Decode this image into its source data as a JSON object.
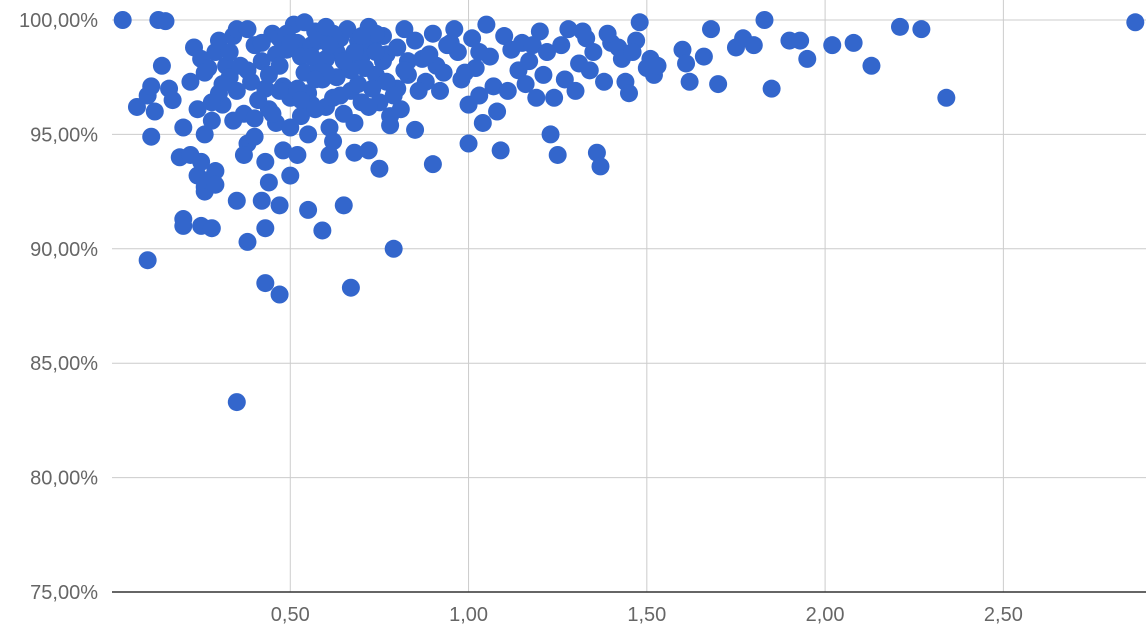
{
  "colors": {
    "point": "#3366cc",
    "grid": "#cccccc",
    "baseline": "#333333",
    "tick_text": "#666666"
  },
  "chart_data": {
    "type": "scatter",
    "title": "",
    "xlabel": "",
    "ylabel": "",
    "xlim": [
      0,
      2.9
    ],
    "ylim": [
      75,
      100
    ],
    "x_ticks": [
      {
        "value": 0.5,
        "label": "0,50"
      },
      {
        "value": 1.0,
        "label": "1,00"
      },
      {
        "value": 1.5,
        "label": "1,50"
      },
      {
        "value": 2.0,
        "label": "2,00"
      },
      {
        "value": 2.5,
        "label": "2,50"
      }
    ],
    "y_ticks": [
      {
        "value": 75,
        "label": "75,00%"
      },
      {
        "value": 80,
        "label": "80,00%"
      },
      {
        "value": 85,
        "label": "85,00%"
      },
      {
        "value": 90,
        "label": "90,00%"
      },
      {
        "value": 95,
        "label": "95,00%"
      },
      {
        "value": 100,
        "label": "100,00%"
      }
    ],
    "grid": true,
    "legend": "none",
    "points": [
      [
        0.03,
        100.0
      ],
      [
        0.13,
        100.0
      ],
      [
        0.15,
        99.95
      ],
      [
        0.07,
        96.2
      ],
      [
        0.1,
        96.7
      ],
      [
        0.11,
        97.1
      ],
      [
        0.12,
        96.0
      ],
      [
        0.14,
        98.0
      ],
      [
        0.16,
        97.0
      ],
      [
        0.17,
        96.5
      ],
      [
        0.11,
        94.9
      ],
      [
        0.1,
        89.5
      ],
      [
        0.19,
        94.0
      ],
      [
        0.2,
        95.3
      ],
      [
        0.2,
        91.3
      ],
      [
        0.2,
        91.0
      ],
      [
        0.22,
        94.1
      ],
      [
        0.24,
        93.2
      ],
      [
        0.25,
        93.8
      ],
      [
        0.26,
        92.7
      ],
      [
        0.26,
        92.5
      ],
      [
        0.27,
        93.0
      ],
      [
        0.29,
        93.4
      ],
      [
        0.29,
        92.8
      ],
      [
        0.25,
        91.0
      ],
      [
        0.28,
        90.9
      ],
      [
        0.26,
        95.0
      ],
      [
        0.28,
        95.6
      ],
      [
        0.22,
        97.3
      ],
      [
        0.23,
        98.8
      ],
      [
        0.25,
        98.3
      ],
      [
        0.27,
        97.9
      ],
      [
        0.29,
        98.6
      ],
      [
        0.3,
        99.1
      ],
      [
        0.32,
        98.0
      ],
      [
        0.34,
        99.3
      ],
      [
        0.35,
        99.6
      ],
      [
        0.33,
        97.5
      ],
      [
        0.31,
        96.3
      ],
      [
        0.35,
        96.9
      ],
      [
        0.37,
        95.9
      ],
      [
        0.38,
        97.8
      ],
      [
        0.4,
        98.9
      ],
      [
        0.42,
        98.2
      ],
      [
        0.43,
        97.0
      ],
      [
        0.44,
        96.1
      ],
      [
        0.46,
        95.5
      ],
      [
        0.48,
        94.3
      ],
      [
        0.38,
        94.6
      ],
      [
        0.4,
        94.9
      ],
      [
        0.43,
        93.8
      ],
      [
        0.44,
        92.9
      ],
      [
        0.42,
        92.1
      ],
      [
        0.35,
        92.1
      ],
      [
        0.43,
        90.9
      ],
      [
        0.38,
        90.3
      ],
      [
        0.47,
        91.9
      ],
      [
        0.5,
        93.2
      ],
      [
        0.52,
        94.1
      ],
      [
        0.5,
        95.3
      ],
      [
        0.45,
        99.4
      ],
      [
        0.47,
        99.2
      ],
      [
        0.49,
        98.7
      ],
      [
        0.51,
        99.8
      ],
      [
        0.52,
        99.0
      ],
      [
        0.53,
        98.4
      ],
      [
        0.54,
        97.7
      ],
      [
        0.55,
        96.8
      ],
      [
        0.56,
        98.9
      ],
      [
        0.57,
        99.5
      ],
      [
        0.58,
        98.1
      ],
      [
        0.59,
        97.4
      ],
      [
        0.6,
        96.2
      ],
      [
        0.61,
        95.3
      ],
      [
        0.62,
        94.7
      ],
      [
        0.63,
        98.6
      ],
      [
        0.64,
        99.2
      ],
      [
        0.66,
        98.0
      ],
      [
        0.67,
        96.9
      ],
      [
        0.68,
        95.5
      ],
      [
        0.69,
        97.2
      ],
      [
        0.7,
        98.4
      ],
      [
        0.71,
        99.0
      ],
      [
        0.72,
        99.7
      ],
      [
        0.73,
        98.8
      ],
      [
        0.74,
        97.6
      ],
      [
        0.75,
        96.4
      ],
      [
        0.76,
        99.3
      ],
      [
        0.77,
        98.5
      ],
      [
        0.78,
        95.8
      ],
      [
        0.8,
        97.0
      ],
      [
        0.81,
        96.1
      ],
      [
        0.82,
        99.6
      ],
      [
        0.83,
        98.2
      ],
      [
        0.55,
        95.0
      ],
      [
        0.58,
        97.9
      ],
      [
        0.6,
        98.3
      ],
      [
        0.62,
        96.6
      ],
      [
        0.65,
        95.9
      ],
      [
        0.68,
        94.2
      ],
      [
        0.72,
        94.3
      ],
      [
        0.75,
        93.5
      ],
      [
        0.78,
        95.4
      ],
      [
        0.55,
        91.7
      ],
      [
        0.59,
        90.8
      ],
      [
        0.65,
        91.9
      ],
      [
        0.61,
        94.1
      ],
      [
        0.67,
        88.3
      ],
      [
        0.47,
        88.0
      ],
      [
        0.43,
        88.5
      ],
      [
        0.79,
        90.0
      ],
      [
        0.35,
        83.3
      ],
      [
        0.85,
        99.1
      ],
      [
        0.87,
        98.3
      ],
      [
        0.88,
        97.3
      ],
      [
        0.9,
        99.4
      ],
      [
        0.91,
        98.0
      ],
      [
        0.92,
        96.9
      ],
      [
        0.93,
        97.7
      ],
      [
        0.95,
        99.0
      ],
      [
        0.97,
        98.6
      ],
      [
        0.98,
        97.4
      ],
      [
        1.0,
        96.3
      ],
      [
        1.01,
        99.2
      ],
      [
        1.02,
        97.9
      ],
      [
        1.03,
        96.7
      ],
      [
        1.04,
        95.5
      ],
      [
        1.05,
        99.8
      ],
      [
        1.06,
        98.4
      ],
      [
        1.07,
        97.1
      ],
      [
        1.08,
        96.0
      ],
      [
        1.09,
        94.3
      ],
      [
        1.0,
        94.6
      ],
      [
        0.9,
        93.7
      ],
      [
        0.85,
        95.2
      ],
      [
        1.1,
        99.3
      ],
      [
        1.12,
        98.7
      ],
      [
        1.14,
        97.8
      ],
      [
        1.15,
        99.0
      ],
      [
        1.17,
        98.2
      ],
      [
        1.19,
        96.6
      ],
      [
        1.2,
        99.5
      ],
      [
        1.21,
        97.6
      ],
      [
        1.23,
        95.0
      ],
      [
        1.24,
        96.6
      ],
      [
        1.25,
        94.1
      ],
      [
        1.26,
        98.9
      ],
      [
        1.28,
        99.6
      ],
      [
        1.3,
        96.9
      ],
      [
        1.31,
        98.1
      ],
      [
        1.33,
        99.2
      ],
      [
        1.35,
        98.6
      ],
      [
        1.36,
        94.2
      ],
      [
        1.37,
        93.6
      ],
      [
        1.38,
        97.3
      ],
      [
        1.4,
        99.0
      ],
      [
        1.42,
        98.8
      ],
      [
        1.44,
        97.3
      ],
      [
        1.45,
        96.8
      ],
      [
        1.47,
        99.1
      ],
      [
        1.48,
        99.9
      ],
      [
        1.5,
        97.9
      ],
      [
        1.51,
        98.3
      ],
      [
        1.52,
        97.6
      ],
      [
        1.53,
        98.0
      ],
      [
        1.6,
        98.7
      ],
      [
        1.62,
        97.3
      ],
      [
        1.61,
        98.1
      ],
      [
        1.66,
        98.4
      ],
      [
        1.68,
        99.6
      ],
      [
        1.7,
        97.2
      ],
      [
        1.75,
        98.8
      ],
      [
        1.77,
        99.2
      ],
      [
        1.8,
        98.9
      ],
      [
        1.83,
        100.0
      ],
      [
        1.85,
        97.0
      ],
      [
        1.9,
        99.1
      ],
      [
        1.93,
        99.1
      ],
      [
        1.95,
        98.3
      ],
      [
        2.02,
        98.9
      ],
      [
        2.08,
        99.0
      ],
      [
        2.13,
        98.0
      ],
      [
        2.21,
        99.7
      ],
      [
        2.27,
        99.6
      ],
      [
        2.34,
        96.6
      ],
      [
        2.87,
        99.9
      ],
      [
        0.3,
        96.8
      ],
      [
        0.33,
        98.6
      ],
      [
        0.36,
        98.0
      ],
      [
        0.39,
        97.3
      ],
      [
        0.41,
        96.5
      ],
      [
        0.44,
        97.6
      ],
      [
        0.46,
        98.5
      ],
      [
        0.48,
        97.1
      ],
      [
        0.5,
        96.6
      ],
      [
        0.53,
        95.8
      ],
      [
        0.56,
        96.3
      ],
      [
        0.58,
        99.1
      ],
      [
        0.63,
        97.5
      ],
      [
        0.66,
        99.6
      ],
      [
        0.69,
        99.1
      ],
      [
        0.71,
        97.9
      ],
      [
        0.74,
        99.4
      ],
      [
        0.77,
        97.3
      ],
      [
        0.8,
        98.8
      ],
      [
        0.83,
        97.6
      ],
      [
        0.86,
        96.9
      ],
      [
        0.89,
        98.5
      ],
      [
        0.94,
        98.9
      ],
      [
        0.96,
        99.6
      ],
      [
        0.99,
        97.7
      ],
      [
        1.03,
        98.6
      ],
      [
        1.11,
        96.9
      ],
      [
        1.16,
        97.2
      ],
      [
        1.18,
        98.9
      ],
      [
        1.22,
        98.6
      ],
      [
        1.27,
        97.4
      ],
      [
        1.32,
        99.5
      ],
      [
        1.34,
        97.8
      ],
      [
        1.39,
        99.4
      ],
      [
        1.43,
        98.3
      ],
      [
        1.46,
        98.6
      ],
      [
        0.24,
        96.1
      ],
      [
        0.26,
        97.7
      ],
      [
        0.28,
        96.4
      ],
      [
        0.31,
        97.2
      ],
      [
        0.34,
        95.6
      ],
      [
        0.37,
        94.1
      ],
      [
        0.4,
        95.7
      ],
      [
        0.42,
        99.0
      ],
      [
        0.45,
        95.9
      ],
      [
        0.47,
        96.9
      ],
      [
        0.49,
        99.4
      ],
      [
        0.52,
        97.0
      ],
      [
        0.54,
        99.9
      ],
      [
        0.57,
        96.1
      ],
      [
        0.6,
        97.7
      ],
      [
        0.62,
        99.4
      ],
      [
        0.64,
        96.7
      ],
      [
        0.67,
        97.8
      ],
      [
        0.7,
        96.4
      ],
      [
        0.73,
        97.0
      ],
      [
        0.76,
        98.2
      ],
      [
        0.79,
        96.7
      ],
      [
        0.82,
        97.8
      ],
      [
        0.38,
        99.6
      ],
      [
        0.56,
        98.4
      ],
      [
        0.6,
        99.7
      ],
      [
        0.68,
        98.6
      ],
      [
        0.74,
        98.6
      ],
      [
        0.5,
        99.0
      ],
      [
        0.53,
        96.5
      ],
      [
        0.57,
        97.4
      ],
      [
        0.61,
        98.9
      ],
      [
        0.65,
        98.2
      ],
      [
        0.7,
        99.3
      ],
      [
        0.72,
        96.2
      ],
      [
        0.47,
        98.0
      ]
    ]
  }
}
